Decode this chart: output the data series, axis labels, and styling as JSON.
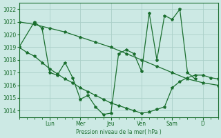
{
  "background_color": "#cce9e4",
  "grid_color": "#aacfc8",
  "line_color": "#1a6e2e",
  "text_color": "#1a6e2e",
  "xlabel_text": "Pression niveau de la mer( hPa )",
  "ylim": [
    1013.5,
    1022.5
  ],
  "yticks": [
    1014,
    1015,
    1016,
    1017,
    1018,
    1019,
    1020,
    1021,
    1022
  ],
  "day_labels": [
    "Lun",
    "Mer",
    "Jeu",
    "Ven",
    "Sam",
    "D"
  ],
  "day_positions": [
    24,
    48,
    72,
    96,
    120,
    144
  ],
  "xlim": [
    0,
    156
  ],
  "series1_x": [
    0,
    6,
    12,
    18,
    24,
    30,
    36,
    42,
    48,
    54,
    60,
    66,
    72,
    78,
    84,
    90,
    96,
    102,
    108,
    114,
    120,
    126,
    132,
    138,
    144,
    150,
    156
  ],
  "series1_y": [
    1019.0,
    1018.6,
    1018.3,
    1017.8,
    1017.3,
    1016.9,
    1016.5,
    1016.2,
    1015.8,
    1015.5,
    1015.2,
    1014.9,
    1014.6,
    1014.4,
    1014.2,
    1014.0,
    1013.8,
    1013.9,
    1014.1,
    1014.3,
    1015.8,
    1016.3,
    1016.6,
    1016.8,
    1016.8,
    1016.6,
    1016.5
  ],
  "series2_x": [
    0,
    12,
    18,
    24,
    30,
    36,
    42,
    48,
    54,
    60,
    66,
    72,
    78,
    84,
    90,
    96,
    102,
    108,
    114,
    120,
    126,
    132,
    138
  ],
  "series2_y": [
    1019.0,
    1021.0,
    1020.5,
    1017.0,
    1016.8,
    1017.8,
    1016.6,
    1014.9,
    1015.2,
    1014.3,
    1013.7,
    1013.8,
    1018.5,
    1018.8,
    1018.5,
    1017.1,
    1021.7,
    1018.0,
    1021.5,
    1021.2,
    1022.0,
    1017.0,
    1016.5
  ],
  "series3_x": [
    0,
    12,
    24,
    36,
    48,
    60,
    72,
    84,
    96,
    108,
    120,
    132,
    144,
    156
  ],
  "series3_y": [
    1021.0,
    1020.8,
    1020.5,
    1020.2,
    1019.8,
    1019.4,
    1019.0,
    1018.5,
    1018.0,
    1017.5,
    1017.0,
    1016.5,
    1016.2,
    1016.0
  ]
}
